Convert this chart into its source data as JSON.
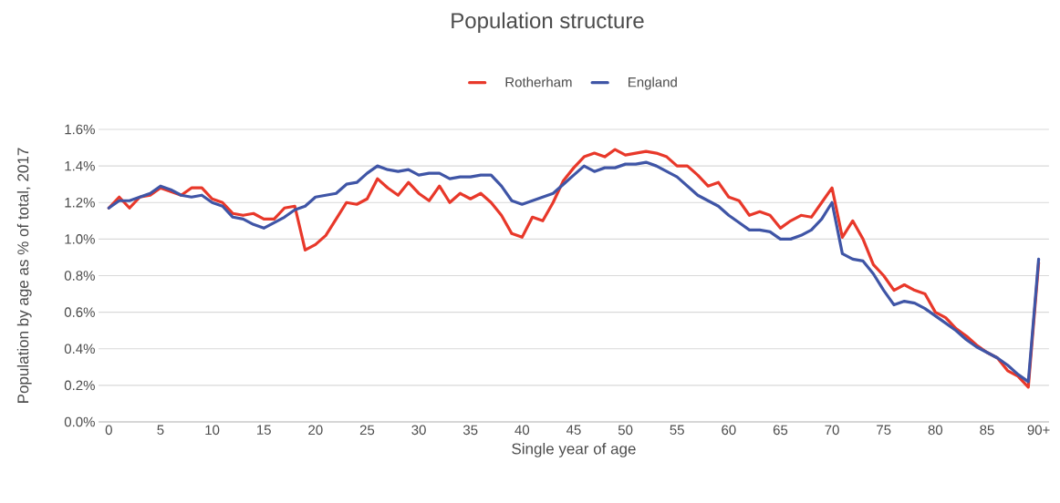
{
  "chart_data": {
    "type": "line",
    "title": "Population structure",
    "xlabel": "Single year of age",
    "ylabel": "Population by age as % of total, 2017",
    "x": [
      0,
      1,
      2,
      3,
      4,
      5,
      6,
      7,
      8,
      9,
      10,
      11,
      12,
      13,
      14,
      15,
      16,
      17,
      18,
      19,
      20,
      21,
      22,
      23,
      24,
      25,
      26,
      27,
      28,
      29,
      30,
      31,
      32,
      33,
      34,
      35,
      36,
      37,
      38,
      39,
      40,
      41,
      42,
      43,
      44,
      45,
      46,
      47,
      48,
      49,
      50,
      51,
      52,
      53,
      54,
      55,
      56,
      57,
      58,
      59,
      60,
      61,
      62,
      63,
      64,
      65,
      66,
      67,
      68,
      69,
      70,
      71,
      72,
      73,
      74,
      75,
      76,
      77,
      78,
      79,
      80,
      81,
      82,
      83,
      84,
      85,
      86,
      87,
      88,
      89,
      90
    ],
    "series": [
      {
        "name": "Rotherham",
        "color": "#e8382a",
        "values": [
          1.17,
          1.23,
          1.17,
          1.23,
          1.24,
          1.28,
          1.26,
          1.24,
          1.28,
          1.28,
          1.22,
          1.2,
          1.14,
          1.13,
          1.14,
          1.11,
          1.11,
          1.17,
          1.18,
          0.94,
          0.97,
          1.02,
          1.11,
          1.2,
          1.19,
          1.22,
          1.33,
          1.28,
          1.24,
          1.31,
          1.25,
          1.21,
          1.29,
          1.2,
          1.25,
          1.22,
          1.25,
          1.2,
          1.13,
          1.03,
          1.01,
          1.12,
          1.1,
          1.2,
          1.32,
          1.39,
          1.45,
          1.47,
          1.45,
          1.49,
          1.46,
          1.47,
          1.48,
          1.47,
          1.45,
          1.4,
          1.4,
          1.35,
          1.29,
          1.31,
          1.23,
          1.21,
          1.13,
          1.15,
          1.13,
          1.06,
          1.1,
          1.13,
          1.12,
          1.2,
          1.28,
          1.01,
          1.1,
          1.0,
          0.86,
          0.8,
          0.72,
          0.75,
          0.72,
          0.7,
          0.6,
          0.57,
          0.51,
          0.47,
          0.42,
          0.38,
          0.35,
          0.28,
          0.25,
          0.19,
          0.87
        ]
      },
      {
        "name": "England",
        "color": "#3f55a6",
        "values": [
          1.17,
          1.21,
          1.21,
          1.23,
          1.25,
          1.29,
          1.27,
          1.24,
          1.23,
          1.24,
          1.2,
          1.18,
          1.12,
          1.11,
          1.08,
          1.06,
          1.09,
          1.12,
          1.16,
          1.18,
          1.23,
          1.24,
          1.25,
          1.3,
          1.31,
          1.36,
          1.4,
          1.38,
          1.37,
          1.38,
          1.35,
          1.36,
          1.36,
          1.33,
          1.34,
          1.34,
          1.35,
          1.35,
          1.29,
          1.21,
          1.19,
          1.21,
          1.23,
          1.25,
          1.3,
          1.35,
          1.4,
          1.37,
          1.39,
          1.39,
          1.41,
          1.41,
          1.42,
          1.4,
          1.37,
          1.34,
          1.29,
          1.24,
          1.21,
          1.18,
          1.13,
          1.09,
          1.05,
          1.05,
          1.04,
          1.0,
          1.0,
          1.02,
          1.05,
          1.11,
          1.2,
          0.92,
          0.89,
          0.88,
          0.81,
          0.72,
          0.64,
          0.66,
          0.65,
          0.62,
          0.58,
          0.54,
          0.5,
          0.45,
          0.41,
          0.38,
          0.35,
          0.31,
          0.26,
          0.22,
          0.89
        ]
      }
    ],
    "xlim": [
      -1,
      91
    ],
    "xticks": [
      0,
      5,
      10,
      15,
      20,
      25,
      30,
      35,
      40,
      45,
      50,
      55,
      60,
      65,
      70,
      75,
      80,
      85,
      {
        "value": 90,
        "label": "90+"
      }
    ],
    "ylim": [
      0,
      1.6
    ],
    "yticks": [
      {
        "value": 0,
        "label": "0.0%"
      },
      {
        "value": 0.2,
        "label": "0.2%"
      },
      {
        "value": 0.4,
        "label": "0.4%"
      },
      {
        "value": 0.6,
        "label": "0.6%"
      },
      {
        "value": 0.8,
        "label": "0.8%"
      },
      {
        "value": 1.0,
        "label": "1.0%"
      },
      {
        "value": 1.2,
        "label": "1.2%"
      },
      {
        "value": 1.4,
        "label": "1.4%"
      },
      {
        "value": 1.6,
        "label": "1.6%"
      }
    ],
    "grid": "y",
    "legend": "top",
    "marker": "none",
    "line_style": "solid"
  }
}
